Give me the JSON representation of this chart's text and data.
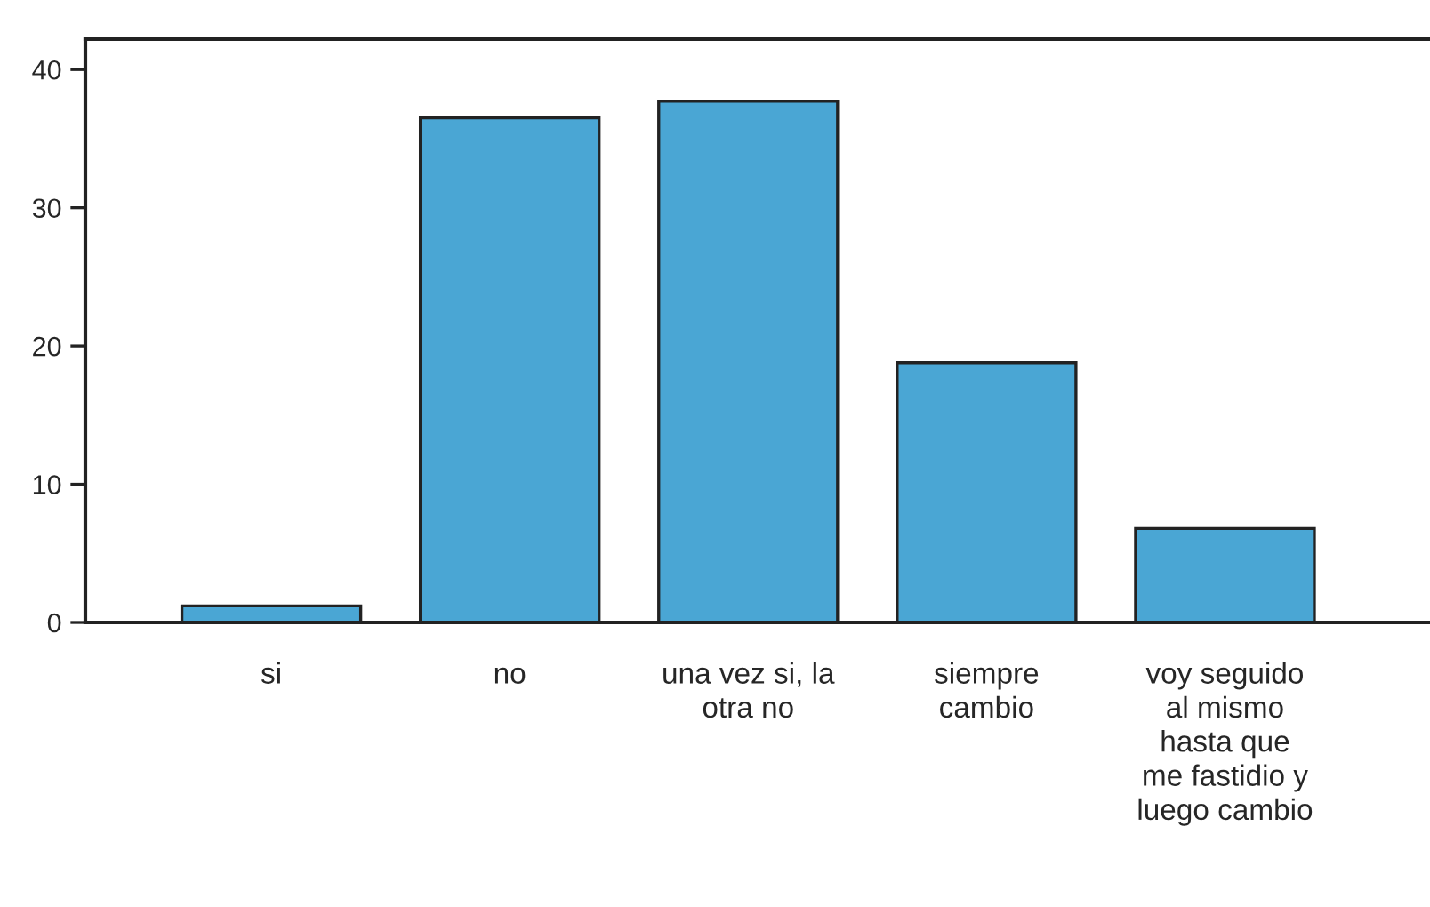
{
  "chart_data": {
    "type": "bar",
    "categories": [
      "si",
      "no",
      "una vez si, la\notra no",
      "siempre\ncambio",
      "voy seguido\nal mismo\nhasta que\nme fastidio y\nluego cambio"
    ],
    "values": [
      1.2,
      36.5,
      37.7,
      18.8,
      6.8
    ],
    "color": "#4aa6d4",
    "ylim": [
      0,
      42.2
    ],
    "yticks": [
      0,
      10,
      20,
      30,
      40
    ],
    "grid": false,
    "legend": false
  }
}
